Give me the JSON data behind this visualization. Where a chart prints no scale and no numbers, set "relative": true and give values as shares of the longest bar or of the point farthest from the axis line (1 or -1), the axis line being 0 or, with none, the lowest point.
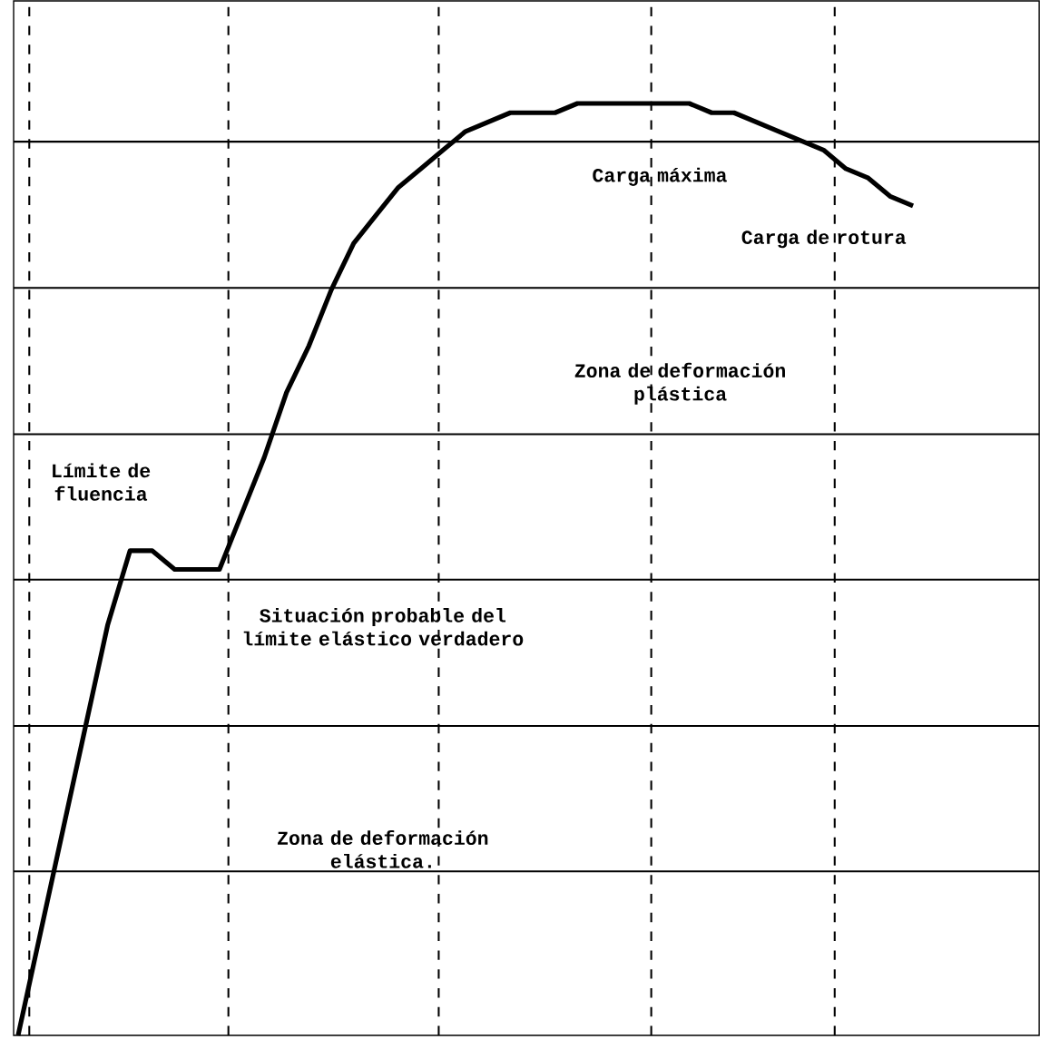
{
  "chart_data": {
    "type": "line",
    "relative": true,
    "color": "#000000",
    "grid": true,
    "tick_labels": false,
    "categories": [
      null,
      null,
      null,
      null,
      null,
      null,
      null,
      null,
      null,
      null,
      null,
      null,
      null,
      null,
      null,
      null,
      null,
      null,
      null,
      null,
      null,
      null,
      null,
      null,
      null,
      null,
      null,
      null,
      null,
      null,
      null,
      null,
      null,
      null,
      null,
      null,
      null,
      null,
      null,
      null,
      null
    ],
    "values": [
      0,
      0.11,
      0.22,
      0.33,
      0.44,
      0.52,
      0.52,
      0.5,
      0.5,
      0.5,
      0.56,
      0.62,
      0.69,
      0.74,
      0.8,
      0.85,
      0.88,
      0.91,
      0.93,
      0.95,
      0.97,
      0.98,
      0.99,
      0.99,
      0.99,
      1,
      1,
      1,
      1,
      1,
      1,
      0.99,
      0.99,
      0.98,
      0.97,
      0.96,
      0.95,
      0.93,
      0.92,
      0.9,
      0.89
    ],
    "annotations": [
      "Carga máxima",
      "Carga de rotura",
      "Zona de deformación plástica",
      "Límite de fluencia",
      "Situación probable del límite elástico verdadero",
      "Zona de deformación elástica."
    ]
  }
}
